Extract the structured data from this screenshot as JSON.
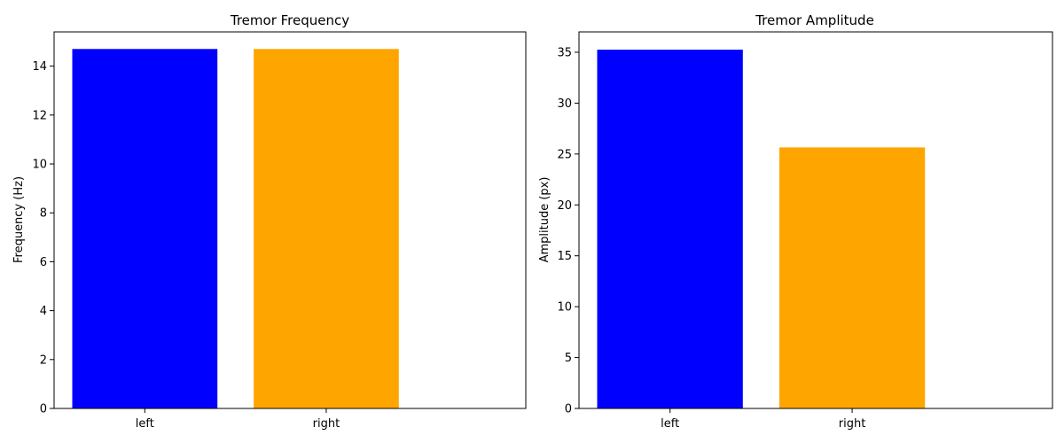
{
  "chart_data": [
    {
      "type": "bar",
      "title": "Tremor Frequency",
      "xlabel": "",
      "ylabel": "Frequency (Hz)",
      "categories": [
        "left",
        "right"
      ],
      "values": [
        14.7,
        14.7
      ],
      "colors": [
        "#0000ff",
        "#ffa500"
      ],
      "ylim": [
        0,
        15.4
      ],
      "yticks": [
        0,
        2,
        4,
        6,
        8,
        10,
        12,
        14
      ],
      "grid": false
    },
    {
      "type": "bar",
      "title": "Tremor Amplitude",
      "xlabel": "",
      "ylabel": "Amplitude (px)",
      "categories": [
        "left",
        "right"
      ],
      "values": [
        35.25,
        25.65
      ],
      "colors": [
        "#0000ff",
        "#ffa500"
      ],
      "ylim": [
        0,
        37
      ],
      "yticks": [
        0,
        5,
        10,
        15,
        20,
        25,
        30,
        35
      ],
      "grid": false
    }
  ]
}
